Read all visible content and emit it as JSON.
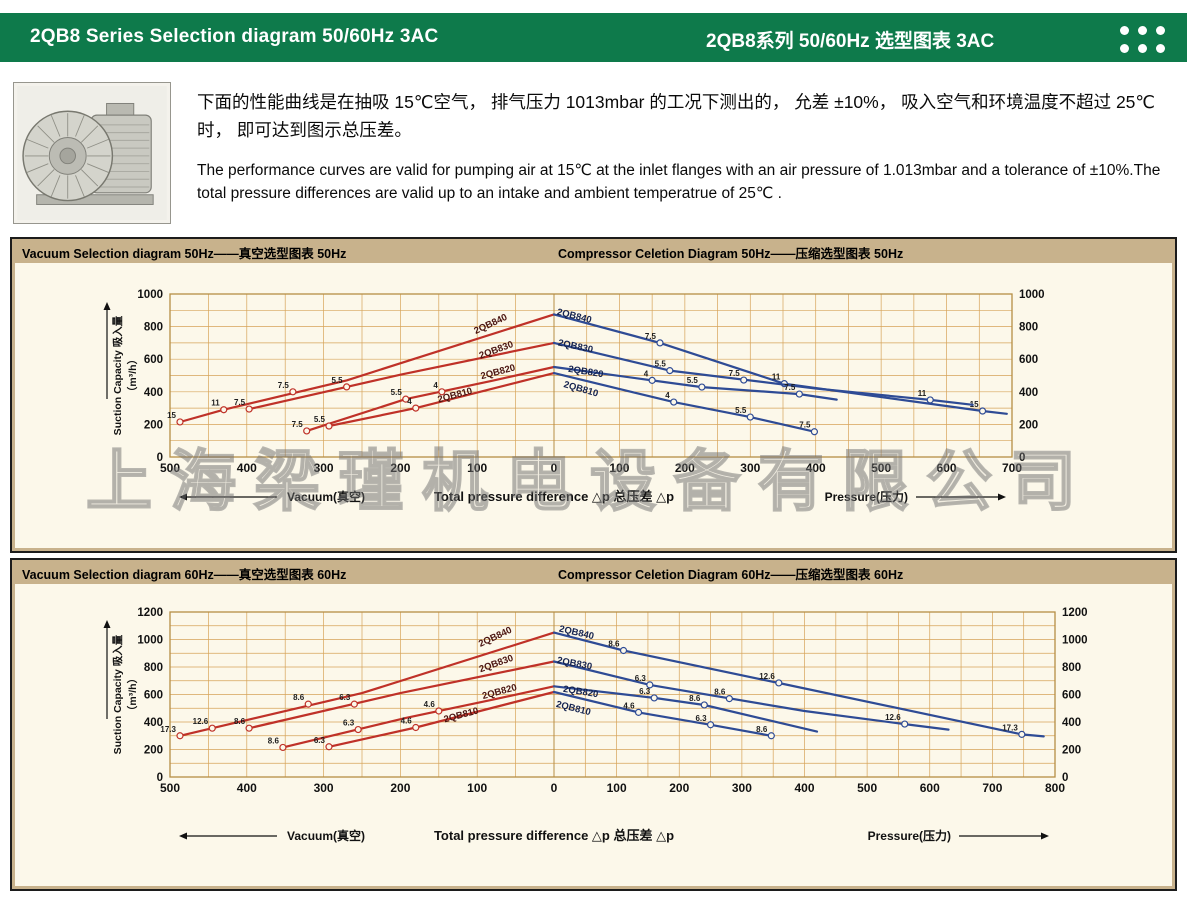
{
  "header": {
    "title_left": "2QB8 Series Selection diagram 50/60Hz 3AC",
    "title_right": "2QB8系列 50/60Hz 选型图表 3AC"
  },
  "intro": {
    "zh": "下面的性能曲线是在抽吸 15℃空气， 排气压力 1013mbar 的工况下测出的， 允差 ±10%， 吸入空气和环境温度不超过 25℃时， 即可达到图示总压差。",
    "en": "The performance curves are valid for pumping air at 15℃ at the inlet flanges with an air pressure of 1.013mbar and a tolerance of ±10%.The total pressure differences are valid up to an intake and ambient temperatrue of 25℃ ."
  },
  "watermark": "上海梁瑾机电设备有限公司",
  "chart_data": [
    {
      "type": "line",
      "frequency": "50Hz",
      "title_left": "Vacuum Selection diagram 50Hz——真空选型图表 50Hz",
      "title_right": "Compressor Celetion Diagram 50Hz——压缩选型图表 50Hz",
      "ylabel": "Suction Capacity 吸入量 （m³/h）",
      "xlabel_center": "Total pressure difference △p 总压差 △p",
      "xlabel_left": "Vacuum(真空)",
      "xlabel_right": "Pressure(压力)",
      "ylim": [
        0,
        1000
      ],
      "xlim": [
        -500,
        700
      ],
      "y_label_step": 200,
      "x_label_step": 100,
      "grid_minor_x": 50,
      "grid_minor_y": 100,
      "colors": {
        "vacuum": "#bf3128",
        "compressor": "#2e4b95",
        "vacuum_label": "#4a1410",
        "compressor_label": "#15234f"
      },
      "vacuum_series": [
        {
          "name": "2QB840",
          "points": [
            [
              -487,
              215
            ],
            [
              -430,
              290
            ],
            [
              -270,
              470
            ],
            [
              0,
              875
            ]
          ],
          "markers": [
            {
              "x": -487,
              "y": 215,
              "label": "15"
            },
            {
              "x": -430,
              "y": 290,
              "label": "11"
            },
            {
              "x": -340,
              "y": 400,
              "label": "7.5"
            }
          ],
          "label_pos": [
            -81,
            800
          ],
          "label_angle": -25
        },
        {
          "name": "2QB830",
          "points": [
            [
              -397,
              294
            ],
            [
              -200,
              505
            ],
            [
              0,
              700
            ]
          ],
          "markers": [
            {
              "x": -397,
              "y": 294,
              "label": "7.5"
            },
            {
              "x": -270,
              "y": 430,
              "label": "5.5"
            }
          ],
          "label_pos": [
            -74,
            640
          ],
          "label_angle": -20
        },
        {
          "name": "2QB820",
          "points": [
            [
              -322,
              160
            ],
            [
              -193,
              355
            ],
            [
              -80,
              468
            ],
            [
              0,
              552
            ]
          ],
          "markers": [
            {
              "x": -322,
              "y": 160,
              "label": "7.5"
            },
            {
              "x": -193,
              "y": 355,
              "label": "5.5"
            },
            {
              "x": -146,
              "y": 400,
              "label": "4"
            }
          ],
          "label_pos": [
            -72,
            505
          ],
          "label_angle": -15
        },
        {
          "name": "2QB810",
          "points": [
            [
              -293,
              190
            ],
            [
              -180,
              300
            ],
            [
              0,
              515
            ]
          ],
          "markers": [
            {
              "x": -293,
              "y": 190,
              "label": "5.5"
            },
            {
              "x": -180,
              "y": 300,
              "label": "4"
            }
          ],
          "label_pos": [
            -128,
            362
          ],
          "label_angle": -15
        }
      ],
      "compressor_series": [
        {
          "name": "2QB840",
          "points": [
            [
              0,
              875
            ],
            [
              162,
              700
            ],
            [
              352,
              450
            ],
            [
              655,
              282
            ],
            [
              692,
              265
            ]
          ],
          "markers": [
            {
              "x": 162,
              "y": 700,
              "label": "7.5"
            },
            {
              "x": 352,
              "y": 450,
              "label": "11"
            },
            {
              "x": 655,
              "y": 282,
              "label": "15"
            }
          ],
          "label_pos": [
            30,
            848
          ],
          "label_angle": 14
        },
        {
          "name": "2QB830",
          "points": [
            [
              0,
              700
            ],
            [
              177,
              530
            ],
            [
              400,
              420
            ],
            [
              575,
              350
            ],
            [
              640,
              320
            ]
          ],
          "markers": [
            {
              "x": 177,
              "y": 530,
              "label": "5.5"
            },
            {
              "x": 290,
              "y": 472,
              "label": "7.5"
            },
            {
              "x": 575,
              "y": 350,
              "label": "11"
            }
          ],
          "label_pos": [
            32,
            662
          ],
          "label_angle": 12
        },
        {
          "name": "2QB820",
          "points": [
            [
              0,
              552
            ],
            [
              150,
              470
            ],
            [
              226,
              429
            ],
            [
              375,
              386
            ],
            [
              432,
              352
            ]
          ],
          "markers": [
            {
              "x": 150,
              "y": 470,
              "label": "4"
            },
            {
              "x": 226,
              "y": 429,
              "label": "5.5"
            },
            {
              "x": 375,
              "y": 386,
              "label": "7.5"
            }
          ],
          "label_pos": [
            48,
            506
          ],
          "label_angle": 9
        },
        {
          "name": "2QB810",
          "points": [
            [
              0,
              515
            ],
            [
              183,
              337
            ],
            [
              300,
              245
            ],
            [
              398,
              155
            ]
          ],
          "markers": [
            {
              "x": 183,
              "y": 337,
              "label": "4"
            },
            {
              "x": 300,
              "y": 245,
              "label": "5.5"
            },
            {
              "x": 398,
              "y": 155,
              "label": "7.5"
            }
          ],
          "label_pos": [
            40,
            400
          ],
          "label_angle": 16
        }
      ]
    },
    {
      "type": "line",
      "frequency": "60Hz",
      "title_left": "Vacuum Selection diagram 60Hz——真空选型图表 60Hz",
      "title_right": "Compressor Celetion Diagram 60Hz——压缩选型图表 60Hz",
      "ylabel": "Suction Capacity 吸入量 （m³/h）",
      "xlabel_center": "Total pressure difference △p 总压差 △p",
      "xlabel_left": "Vacuum(真空)",
      "xlabel_right": "Pressure(压力)",
      "ylim": [
        0,
        1200
      ],
      "xlim": [
        -500,
        800
      ],
      "y_label_step": 200,
      "x_label_step": 100,
      "grid_minor_x": 50,
      "grid_minor_y": 100,
      "colors": {
        "vacuum": "#bf3128",
        "compressor": "#2e4b95",
        "vacuum_label": "#4a1410",
        "compressor_label": "#15234f"
      },
      "vacuum_series": [
        {
          "name": "2QB840",
          "points": [
            [
              -487,
              300
            ],
            [
              -445,
              355
            ],
            [
              -250,
              610
            ],
            [
              0,
              1050
            ]
          ],
          "markers": [
            {
              "x": -487,
              "y": 300,
              "label": "17.3"
            },
            {
              "x": -445,
              "y": 355,
              "label": "12.6"
            },
            {
              "x": -320,
              "y": 530,
              "label": "8.6"
            }
          ],
          "label_pos": [
            -75,
            1000
          ],
          "label_angle": -25
        },
        {
          "name": "2QB830",
          "points": [
            [
              -397,
              355
            ],
            [
              -200,
              610
            ],
            [
              0,
              840
            ]
          ],
          "markers": [
            {
              "x": -397,
              "y": 355,
              "label": "8.6"
            },
            {
              "x": -260,
              "y": 530,
              "label": "6.3"
            }
          ],
          "label_pos": [
            -74,
            805
          ],
          "label_angle": -20
        },
        {
          "name": "2QB820",
          "points": [
            [
              -353,
              215
            ],
            [
              -193,
              430
            ],
            [
              -80,
              562
            ],
            [
              0,
              660
            ]
          ],
          "markers": [
            {
              "x": -353,
              "y": 215,
              "label": "8.6"
            },
            {
              "x": -255,
              "y": 345,
              "label": "6.3"
            },
            {
              "x": -150,
              "y": 480,
              "label": "4.6"
            }
          ],
          "label_pos": [
            -70,
            600
          ],
          "label_angle": -15
        },
        {
          "name": "2QB810",
          "points": [
            [
              -293,
              220
            ],
            [
              -180,
              360
            ],
            [
              0,
              618
            ]
          ],
          "markers": [
            {
              "x": -293,
              "y": 220,
              "label": "6.3"
            },
            {
              "x": -180,
              "y": 360,
              "label": "4.6"
            }
          ],
          "label_pos": [
            -120,
            430
          ],
          "label_angle": -15
        }
      ],
      "compressor_series": [
        {
          "name": "2QB840",
          "points": [
            [
              0,
              1050
            ],
            [
              111,
              920
            ],
            [
              359,
              684
            ],
            [
              747,
              310
            ],
            [
              782,
              295
            ]
          ],
          "markers": [
            {
              "x": 111,
              "y": 920,
              "label": "8.6"
            },
            {
              "x": 359,
              "y": 684,
              "label": "12.6"
            },
            {
              "x": 747,
              "y": 310,
              "label": "17.3"
            }
          ],
          "label_pos": [
            35,
            1030
          ],
          "label_angle": 13
        },
        {
          "name": "2QB830",
          "points": [
            [
              0,
              840
            ],
            [
              153,
              670
            ],
            [
              400,
              480
            ],
            [
              560,
              385
            ],
            [
              630,
              345
            ]
          ],
          "markers": [
            {
              "x": 153,
              "y": 670,
              "label": "6.3"
            },
            {
              "x": 280,
              "y": 570,
              "label": "8.6"
            },
            {
              "x": 560,
              "y": 385,
              "label": "12.6"
            }
          ],
          "label_pos": [
            32,
            805
          ],
          "label_angle": 11
        },
        {
          "name": "2QB820",
          "points": [
            [
              0,
              660
            ],
            [
              160,
              575
            ],
            [
              240,
              524
            ],
            [
              420,
              330
            ]
          ],
          "markers": [
            {
              "x": 160,
              "y": 575,
              "label": "6.3"
            },
            {
              "x": 240,
              "y": 524,
              "label": "8.6"
            }
          ],
          "label_pos": [
            42,
            600
          ],
          "label_angle": 9
        },
        {
          "name": "2QB810",
          "points": [
            [
              0,
              618
            ],
            [
              135,
              470
            ],
            [
              250,
              380
            ],
            [
              347,
              300
            ]
          ],
          "markers": [
            {
              "x": 135,
              "y": 470,
              "label": "4.6"
            },
            {
              "x": 250,
              "y": 380,
              "label": "6.3"
            },
            {
              "x": 347,
              "y": 300,
              "label": "8.6"
            }
          ],
          "label_pos": [
            30,
            480
          ],
          "label_angle": 14
        }
      ]
    }
  ]
}
